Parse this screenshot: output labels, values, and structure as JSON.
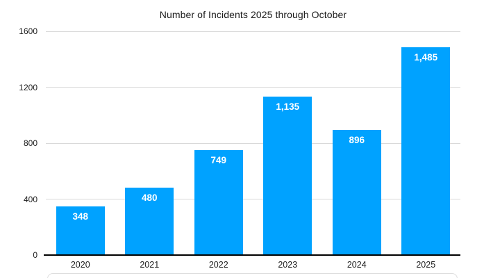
{
  "chart_data": {
    "type": "bar",
    "title": "Number of Incidents 2025 through October",
    "categories": [
      "2020",
      "2021",
      "2022",
      "2023",
      "2024",
      "2025"
    ],
    "values": [
      348,
      480,
      749,
      1135,
      896,
      1485
    ],
    "value_labels": [
      "348",
      "480",
      "749",
      "1,135",
      "896",
      "1,485"
    ],
    "xlabel": "",
    "ylabel": "",
    "ylim": [
      0,
      1600
    ],
    "yticks": [
      0,
      400,
      800,
      1200,
      1600
    ],
    "ytick_labels": [
      "0",
      "400",
      "800",
      "1200",
      "1600"
    ],
    "grid": true,
    "legend_position": "none"
  },
  "colors": {
    "bar": "#00A2FF",
    "gridline": "#D9D9D9",
    "axis": "#000000",
    "text": "#1A1A1A",
    "value_label": "#FFFFFF",
    "panel_border": "#DEDEDE"
  }
}
